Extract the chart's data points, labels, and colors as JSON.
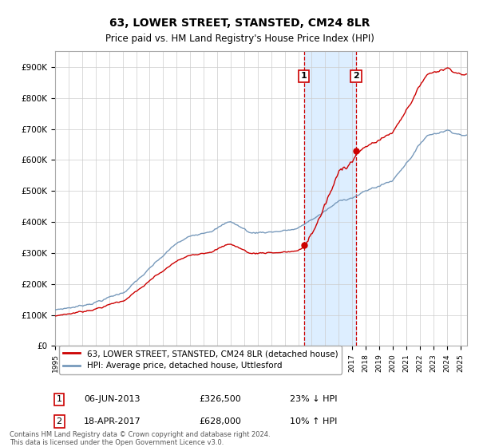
{
  "title": "63, LOWER STREET, STANSTED, CM24 8LR",
  "subtitle": "Price paid vs. HM Land Registry's House Price Index (HPI)",
  "ylim": [
    0,
    950000
  ],
  "xlim_start": 1995.0,
  "xlim_end": 2025.5,
  "sale1_date": 2013.43,
  "sale1_label": "1",
  "sale1_price": 326500,
  "sale2_date": 2017.29,
  "sale2_label": "2",
  "sale2_price": 628000,
  "line1_label": "63, LOWER STREET, STANSTED, CM24 8LR (detached house)",
  "line2_label": "HPI: Average price, detached house, Uttlesford",
  "line1_color": "#cc0000",
  "line2_color": "#7799bb",
  "shade_color": "#ddeeff",
  "marker_color": "#cc0000",
  "sale1_date_str": "06-JUN-2013",
  "sale1_price_str": "£326,500",
  "sale1_pct_str": "23% ↓ HPI",
  "sale2_date_str": "18-APR-2017",
  "sale2_price_str": "£628,000",
  "sale2_pct_str": "10% ↑ HPI",
  "footer": "Contains HM Land Registry data © Crown copyright and database right 2024.\nThis data is licensed under the Open Government Licence v3.0.",
  "background_color": "#ffffff",
  "grid_color": "#cccccc",
  "title_fontsize": 10,
  "subtitle_fontsize": 8.5
}
